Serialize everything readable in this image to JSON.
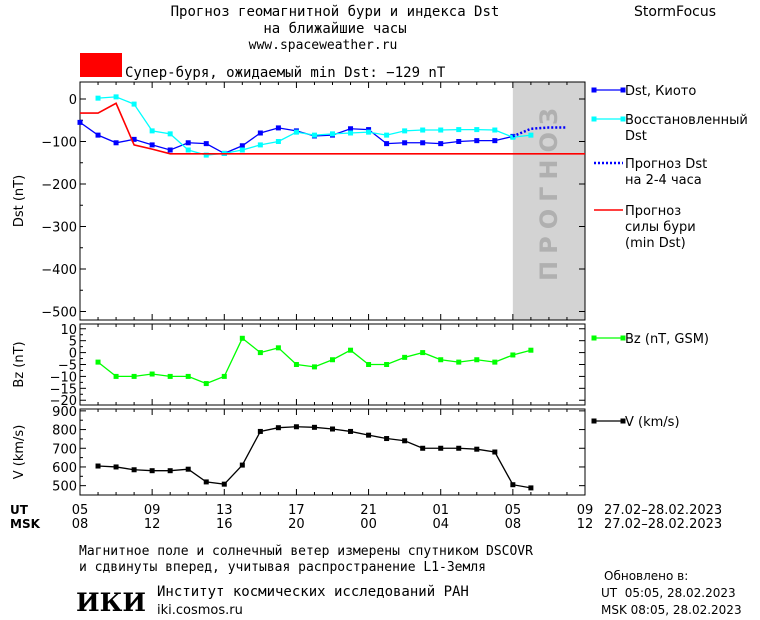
{
  "header": {
    "title_line1": "Прогноз геомагнитной бури и индекса Dst",
    "title_line2": "на ближайшие часы",
    "website": "www.spaceweather.ru",
    "brand": "StormFocus"
  },
  "storm_banner": {
    "text": "Супер-буря, ожидаемый min Dst: −129 nT",
    "color": "#ff0000"
  },
  "colors": {
    "dst_kyoto": "#0000ff",
    "dst_restored": "#00ffff",
    "dst_forecast": "#0000ff",
    "storm_strength": "#ff0000",
    "bz": "#00ff00",
    "v": "#000000",
    "forecast_band": "#d3d3d3"
  },
  "chart_data": [
    {
      "type": "line",
      "panel": "dst",
      "ylabel": "Dst (nT)",
      "ylim": [
        -520,
        40
      ],
      "yticks": [
        0,
        -100,
        -200,
        -300,
        -400,
        -500
      ],
      "ytick_labels": [
        "0",
        "−100",
        "−200",
        "−300",
        "−400",
        "−500"
      ],
      "xlim": [
        5,
        33
      ],
      "forecast_region": {
        "x_start": 29,
        "x_end": 33,
        "label": "ПРОГНОЗ"
      },
      "series": [
        {
          "name": "Dst, Киото",
          "x": [
            5,
            6,
            7,
            8,
            9,
            10,
            11,
            12,
            13,
            14,
            15,
            16,
            17,
            18,
            19,
            20,
            21,
            22,
            23,
            24,
            25,
            26,
            27,
            28,
            29
          ],
          "y": [
            -55,
            -85,
            -103,
            -95,
            -108,
            -120,
            -103,
            -105,
            -128,
            -110,
            -80,
            -68,
            -75,
            -87,
            -85,
            -70,
            -72,
            -105,
            -103,
            -103,
            -105,
            -100,
            -98,
            -98,
            -88
          ]
        },
        {
          "name": "Восстановленный Dst",
          "x": [
            6,
            7,
            8,
            9,
            10,
            11,
            12,
            13,
            14,
            15,
            16,
            17,
            18,
            19,
            20,
            21,
            22,
            23,
            24,
            25,
            26,
            27,
            28,
            29,
            30
          ],
          "y": [
            2,
            5,
            -12,
            -75,
            -82,
            -120,
            -132,
            -128,
            -120,
            -108,
            -100,
            -78,
            -85,
            -82,
            -80,
            -78,
            -85,
            -75,
            -73,
            -73,
            -72,
            -72,
            -73,
            -90,
            -85
          ]
        },
        {
          "name": "Прогноз Dst на 2-4 часа",
          "x": [
            29,
            30,
            31,
            32
          ],
          "y": [
            -88,
            -70,
            -67,
            -67
          ]
        },
        {
          "name": "Прогноз силы бури (min Dst)",
          "x": [
            5,
            6,
            7,
            8,
            9,
            10,
            11,
            12,
            13,
            14,
            15,
            16,
            17,
            18,
            19,
            20,
            21,
            22,
            23,
            24,
            25,
            26,
            27,
            28,
            29,
            30,
            31,
            32,
            33
          ],
          "y": [
            -33,
            -33,
            -10,
            -108,
            -118,
            -129,
            -129,
            -129,
            -129,
            -129,
            -129,
            -129,
            -129,
            -129,
            -129,
            -129,
            -129,
            -129,
            -129,
            -129,
            -129,
            -129,
            -129,
            -129,
            -129,
            -129,
            -129,
            -129,
            -129
          ]
        }
      ],
      "legend": [
        {
          "label_lines": [
            "Dst, Киото"
          ]
        },
        {
          "label_lines": [
            "Восстановленный",
            "Dst"
          ]
        },
        {
          "label_lines": [
            "Прогноз Dst",
            "на 2-4 часа"
          ]
        },
        {
          "label_lines": [
            "Прогноз",
            "силы бури",
            "(min Dst)"
          ]
        }
      ]
    },
    {
      "type": "line",
      "panel": "bz",
      "ylabel": "Bz (nT)",
      "ylim": [
        -22,
        12
      ],
      "yticks": [
        10,
        5,
        0,
        -5,
        -10,
        -15,
        -20
      ],
      "ytick_labels": [
        "10",
        "5",
        "0",
        "−5",
        "−10",
        "−15",
        "−20"
      ],
      "xlim": [
        5,
        33
      ],
      "series": [
        {
          "name": "Bz (nT, GSM)",
          "x": [
            6,
            7,
            8,
            9,
            10,
            11,
            12,
            13,
            14,
            15,
            16,
            17,
            18,
            19,
            20,
            21,
            22,
            23,
            24,
            25,
            26,
            27,
            28,
            29,
            30
          ],
          "y": [
            -4,
            -10,
            -10,
            -9,
            -10,
            -10,
            -13,
            -10,
            6,
            0,
            2,
            -5,
            -6,
            -3,
            1,
            -5,
            -5,
            -2,
            0,
            -3,
            -4,
            -3,
            -4,
            -1,
            1
          ]
        }
      ],
      "legend": [
        {
          "label_lines": [
            "Bz (nT, GSM)"
          ]
        }
      ]
    },
    {
      "type": "line",
      "panel": "v",
      "ylabel": "V (km/s)",
      "ylim": [
        450,
        910
      ],
      "yticks": [
        900,
        800,
        700,
        600,
        500
      ],
      "ytick_labels": [
        "900",
        "800",
        "700",
        "600",
        "500"
      ],
      "xlim": [
        5,
        33
      ],
      "series": [
        {
          "name": "V (km/s)",
          "x": [
            6,
            7,
            8,
            9,
            10,
            11,
            12,
            13,
            14,
            15,
            16,
            17,
            18,
            19,
            20,
            21,
            22,
            23,
            24,
            25,
            26,
            27,
            28,
            29,
            30
          ],
          "y": [
            605,
            600,
            585,
            580,
            580,
            588,
            520,
            508,
            610,
            790,
            810,
            815,
            812,
            803,
            790,
            770,
            752,
            740,
            700,
            700,
            700,
            695,
            680,
            505,
            488
          ]
        }
      ],
      "legend": [
        {
          "label_lines": [
            "V (km/s)"
          ]
        }
      ]
    }
  ],
  "x_axis": {
    "ticks": [
      5,
      9,
      13,
      17,
      21,
      25,
      29,
      33
    ],
    "ut_row_label": "UT",
    "msk_row_label": "MSK",
    "ut_labels": [
      "05",
      "09",
      "13",
      "17",
      "21",
      "01",
      "05",
      "09"
    ],
    "msk_labels": [
      "08",
      "12",
      "16",
      "20",
      "00",
      "04",
      "08",
      "12"
    ],
    "date_range_ut": "27.02–28.02.2023",
    "date_range_msk": "27.02–28.02.2023"
  },
  "footer": {
    "note_line1": "Магнитное поле и солнечный ветер измерены спутником DSCOVR",
    "note_line2": "и сдвинуты вперед, учитывая распространение L1-Земля",
    "logo_text": "ИКИ",
    "institute_name": "Институт космических исследований РАН",
    "institute_site": "iki.cosmos.ru",
    "updated_label": "Обновлено в:",
    "updated_ut": "UT  05:05, 28.02.2023",
    "updated_msk": "MSK 08:05, 28.02.2023"
  }
}
